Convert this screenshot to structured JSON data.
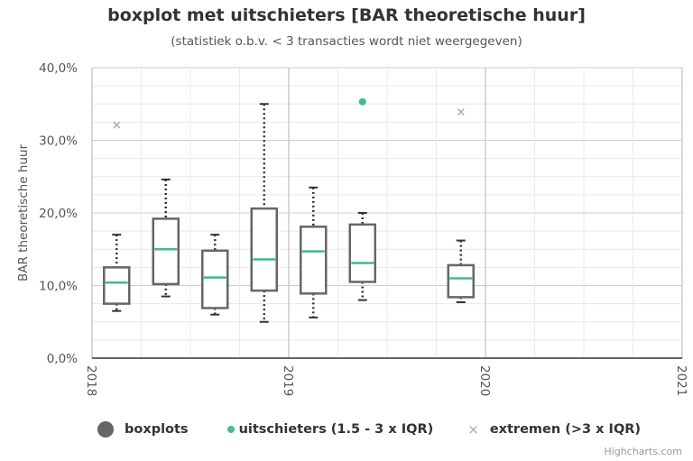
{
  "title": "boxplot met uitschieters [BAR theoretische huur]",
  "subtitle": "(statistiek o.b.v. < 3 transacties wordt niet weergegeven)",
  "credits": "Highcharts.com",
  "legend": {
    "boxplots": "boxplots",
    "outliers": "uitschieters (1.5 - 3 x IQR)",
    "extremes": "extremen (>3 x IQR)"
  },
  "colors": {
    "box": "#666666",
    "median": "#3fbc92",
    "outlier": "#3fbc92",
    "extreme": "#aaaaaa",
    "grid": "#d9d9d9"
  },
  "chart_data": {
    "type": "boxplot",
    "ylabel": "BAR theoretische huur",
    "ylim": [
      0,
      40
    ],
    "yticks": [
      0,
      10,
      20,
      30,
      40
    ],
    "ytick_labels": [
      "0,0%",
      "10,0%",
      "20,0%",
      "30,0%",
      "40,0%"
    ],
    "xlim": [
      2018.0,
      2021.0
    ],
    "xticks": [
      2018,
      2019,
      2020,
      2021
    ],
    "xtick_labels": [
      "2018",
      "2019",
      "2020",
      "2021"
    ],
    "grid": true,
    "legend_position": "bottom",
    "boxes": [
      {
        "x": 2018.125,
        "min": 6.5,
        "q1": 7.5,
        "median": 10.4,
        "q3": 12.5,
        "max": 17.0
      },
      {
        "x": 2018.375,
        "min": 8.5,
        "q1": 10.2,
        "median": 15.0,
        "q3": 19.2,
        "max": 24.6
      },
      {
        "x": 2018.625,
        "min": 6.0,
        "q1": 6.9,
        "median": 11.1,
        "q3": 14.8,
        "max": 17.0
      },
      {
        "x": 2018.875,
        "min": 5.0,
        "q1": 9.3,
        "median": 13.6,
        "q3": 20.6,
        "max": 35.0
      },
      {
        "x": 2019.125,
        "min": 5.6,
        "q1": 8.9,
        "median": 14.7,
        "q3": 18.1,
        "max": 23.5
      },
      {
        "x": 2019.375,
        "min": 8.0,
        "q1": 10.5,
        "median": 13.1,
        "q3": 18.4,
        "max": 20.0
      },
      {
        "x": 2019.875,
        "min": 7.7,
        "q1": 8.4,
        "median": 11.0,
        "q3": 12.8,
        "max": 16.2
      }
    ],
    "outliers": [
      {
        "x": 2019.375,
        "y": 35.3
      }
    ],
    "extremes": [
      {
        "x": 2018.125,
        "y": 32.1
      },
      {
        "x": 2019.875,
        "y": 33.9
      }
    ]
  }
}
